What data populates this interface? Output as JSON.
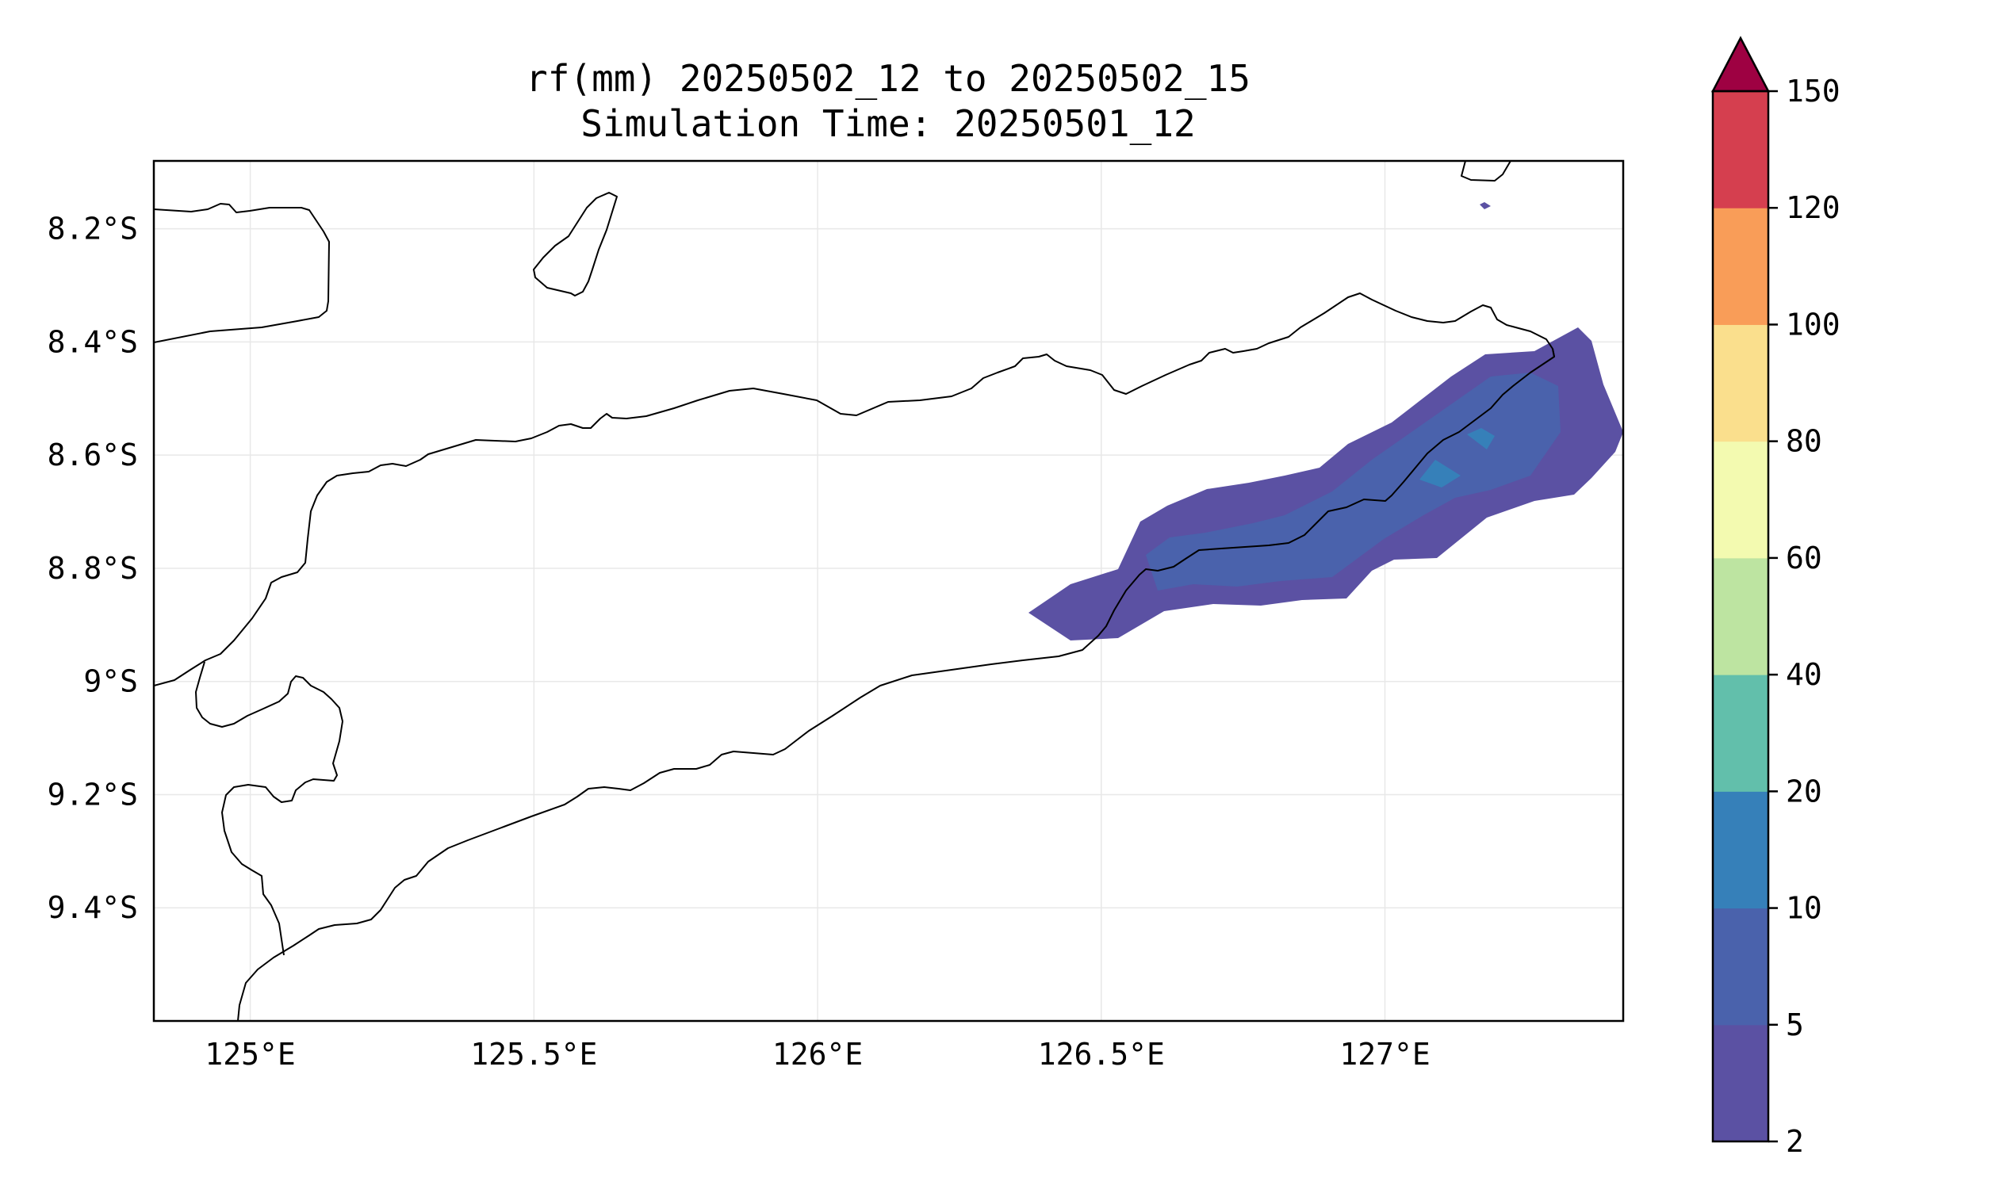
{
  "figure": {
    "title_line1": "rf(mm) 20250502_12 to 20250502_15",
    "title_line2": "Simulation Time: 20250501_12"
  },
  "map": {
    "lon_range": [
      124.83,
      127.42
    ],
    "lat_range": [
      -9.6,
      -8.08
    ],
    "x_ticks": [
      {
        "value": 125.0,
        "label": "125°E"
      },
      {
        "value": 125.5,
        "label": "125.5°E"
      },
      {
        "value": 126.0,
        "label": "126°E"
      },
      {
        "value": 126.5,
        "label": "126.5°E"
      },
      {
        "value": 127.0,
        "label": "127°E"
      }
    ],
    "y_ticks": [
      {
        "value": -8.2,
        "label": "8.2°S"
      },
      {
        "value": -8.4,
        "label": "8.4°S"
      },
      {
        "value": -8.6,
        "label": "8.6°S"
      },
      {
        "value": -8.8,
        "label": "8.8°S"
      },
      {
        "value": -9.0,
        "label": "9°S"
      },
      {
        "value": -9.2,
        "label": "9.2°S"
      },
      {
        "value": -9.4,
        "label": "9.4°S"
      }
    ],
    "grid": true,
    "rain_color_2_5": "#5b51a3",
    "rain_color_5_10": "#4a62ac",
    "rain_color_10_20": "#3680b9"
  },
  "colorbar": {
    "levels": [
      {
        "label": "2"
      },
      {
        "label": "5"
      },
      {
        "label": "10"
      },
      {
        "label": "20"
      },
      {
        "label": "40"
      },
      {
        "label": "60"
      },
      {
        "label": "80"
      },
      {
        "label": "100"
      },
      {
        "label": "120"
      },
      {
        "label": "150"
      }
    ],
    "colors": [
      "#5b51a3",
      "#4a62ac",
      "#3680b9",
      "#62bfab",
      "#bde4a1",
      "#f3fab0",
      "#fadf8d",
      "#f99d58",
      "#d53f4f"
    ],
    "extend_color": "#9e0142",
    "extend": "max"
  }
}
